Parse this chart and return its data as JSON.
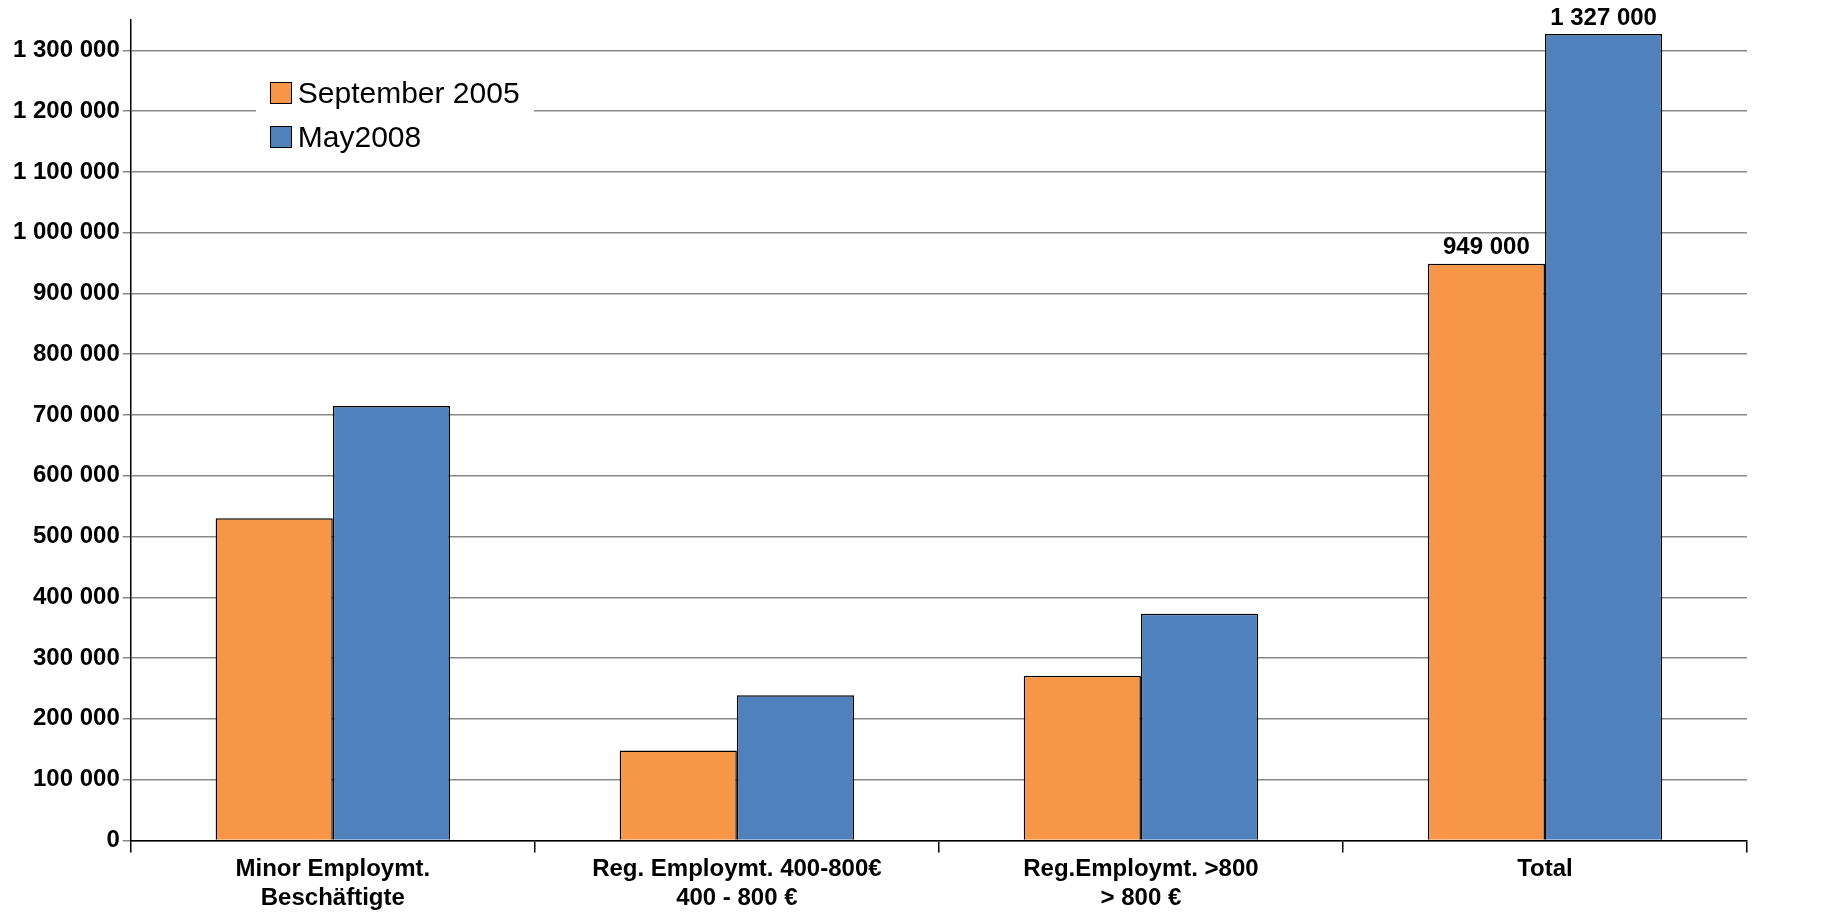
{
  "chart_data": {
    "type": "bar",
    "categories": [
      "Minor Employmt.\nBeschäftigte",
      "Reg. Employmt. 400-800€\n400 - 800 €",
      "Reg.Employmt. >800\n> 800 €",
      "Total"
    ],
    "series": [
      {
        "name": "September 2005",
        "color": "#f79646",
        "values": [
          530000,
          148000,
          271000,
          949000
        ],
        "value_labels": [
          null,
          null,
          null,
          "949 000"
        ]
      },
      {
        "name": "May2008",
        "color": "#4f81bd",
        "values": [
          715000,
          239000,
          373000,
          1327000
        ],
        "value_labels": [
          null,
          null,
          null,
          "1 327 000"
        ]
      }
    ],
    "ylim": [
      0,
      1350000
    ],
    "yticks": [
      {
        "value": 0,
        "label": "0"
      },
      {
        "value": 100000,
        "label": "100 000"
      },
      {
        "value": 200000,
        "label": "200 000"
      },
      {
        "value": 300000,
        "label": "300 000"
      },
      {
        "value": 400000,
        "label": "400 000"
      },
      {
        "value": 500000,
        "label": "500 000"
      },
      {
        "value": 600000,
        "label": "600 000"
      },
      {
        "value": 700000,
        "label": "700 000"
      },
      {
        "value": 800000,
        "label": "800 000"
      },
      {
        "value": 900000,
        "label": "900 000"
      },
      {
        "value": 1000000,
        "label": "1 000 000"
      },
      {
        "value": 1100000,
        "label": "1 100 000"
      },
      {
        "value": 1200000,
        "label": "1 200 000"
      },
      {
        "value": 1300000,
        "label": "1 300 000"
      }
    ],
    "grid": "y",
    "legend": "top left"
  }
}
